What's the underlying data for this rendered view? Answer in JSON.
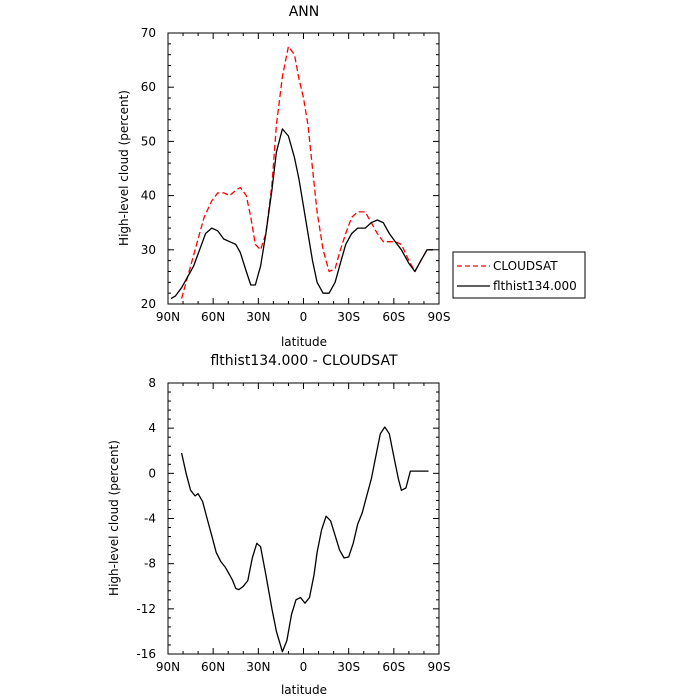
{
  "chart_data": [
    {
      "type": "line",
      "title": "ANN",
      "xlabel": "latitude",
      "ylabel": "High-level cloud (percent)",
      "xlim": [
        90,
        -90
      ],
      "ylim": [
        20,
        70
      ],
      "xticks": [
        90,
        60,
        30,
        0,
        -30,
        -60,
        -90
      ],
      "xticklabels": [
        "90N",
        "60N",
        "30N",
        "0",
        "30S",
        "60S",
        "90S"
      ],
      "yticks": [
        20,
        30,
        40,
        50,
        60,
        70
      ],
      "yticklabels": [
        "20",
        "30",
        "40",
        "50",
        "60",
        "70"
      ],
      "legend": {
        "placement": "right"
      },
      "series": [
        {
          "name": "CLOUDSAT",
          "color": "#ff0000",
          "dashed": true,
          "x": [
            81,
            75,
            70,
            66,
            61,
            57,
            53,
            49,
            45,
            42,
            38,
            35,
            32,
            28.5,
            25,
            21,
            18,
            14,
            10,
            6,
            3,
            0,
            -3,
            -6,
            -9,
            -13,
            -17,
            -21,
            -24,
            -28,
            -32,
            -36,
            -41,
            -45,
            -49,
            -53,
            -57,
            -61,
            -65,
            -70,
            -74,
            -78,
            -82,
            -86
          ],
          "y": [
            21,
            27,
            32,
            36,
            39,
            40.5,
            40.5,
            40,
            41,
            41.5,
            40,
            36,
            31,
            30,
            33,
            42,
            53,
            62,
            67.5,
            66,
            61.5,
            58,
            53,
            45,
            37,
            30,
            26,
            26.5,
            29.5,
            33,
            36,
            37,
            37,
            35,
            33,
            31.5,
            31.5,
            31.5,
            31,
            28,
            26,
            28,
            30,
            30
          ]
        },
        {
          "name": "flthist134.000",
          "color": "#000000",
          "dashed": false,
          "x": [
            88,
            85,
            81,
            77,
            73,
            69,
            65,
            61,
            57,
            53,
            49,
            45,
            42,
            38,
            35,
            32,
            28.5,
            25,
            21,
            18,
            14,
            10,
            6,
            3,
            0,
            -3,
            -6,
            -9,
            -13,
            -17,
            -21,
            -24,
            -28,
            -32,
            -36,
            -41,
            -45,
            -49,
            -53,
            -57,
            -61,
            -65,
            -70,
            -74,
            -78,
            -82,
            -86
          ],
          "y": [
            21,
            21.5,
            23,
            25,
            27,
            30,
            33,
            34,
            33.5,
            32,
            31.5,
            31,
            29.5,
            26,
            23.5,
            23.5,
            27,
            33,
            41,
            48,
            52.3,
            51,
            47,
            43,
            38,
            33,
            28,
            24,
            22,
            22,
            24,
            27,
            31,
            33,
            34,
            34,
            35,
            35.5,
            35,
            33,
            31.5,
            30,
            27.5,
            26,
            28,
            30,
            30
          ]
        }
      ]
    },
    {
      "type": "line",
      "title": "flthist134.000 - CLOUDSAT",
      "xlabel": "latitude",
      "ylabel": "High-level cloud (percent)",
      "xlim": [
        90,
        -90
      ],
      "ylim": [
        -16,
        8
      ],
      "xticks": [
        90,
        60,
        30,
        0,
        -30,
        -60,
        -90
      ],
      "xticklabels": [
        "90N",
        "60N",
        "30N",
        "0",
        "30S",
        "60S",
        "90S"
      ],
      "yticks": [
        -16,
        -12,
        -8,
        -4,
        0,
        4,
        8
      ],
      "yticklabels": [
        "-16",
        "-12",
        "-8",
        "-4",
        "0",
        "4",
        "8"
      ],
      "series": [
        {
          "color": "#000000",
          "x": [
            81,
            78,
            75,
            72,
            70,
            67,
            64,
            61,
            58,
            55,
            52,
            49,
            47,
            45,
            43,
            40,
            37,
            34,
            31,
            28.5,
            25,
            21,
            18,
            14,
            11,
            8,
            5,
            2,
            -1,
            -4,
            -7,
            -9,
            -12,
            -15,
            -18,
            -21,
            -24,
            -27,
            -30,
            -33,
            -36,
            -39,
            -42,
            -45,
            -48,
            -51,
            -54,
            -57,
            -60,
            -63,
            -65,
            -68,
            -71,
            -74,
            -77,
            -80,
            -83
          ],
          "y": [
            1.8,
            0,
            -1.5,
            -2,
            -1.8,
            -2.5,
            -4,
            -5.5,
            -7,
            -7.8,
            -8.3,
            -9,
            -9.5,
            -10.2,
            -10.3,
            -10,
            -9.5,
            -7.5,
            -6.2,
            -6.5,
            -9,
            -12,
            -14,
            -15.8,
            -14.8,
            -12.5,
            -11.2,
            -11,
            -11.5,
            -11,
            -9,
            -7,
            -5,
            -3.8,
            -4.2,
            -5.5,
            -6.8,
            -7.5,
            -7.4,
            -6.2,
            -4.5,
            -3.5,
            -2,
            -0.5,
            1.5,
            3.5,
            4.1,
            3.5,
            1.5,
            -0.5,
            -1.5,
            -1.3,
            0.2,
            0.2,
            0.2,
            0.2,
            0.2
          ]
        }
      ]
    }
  ]
}
